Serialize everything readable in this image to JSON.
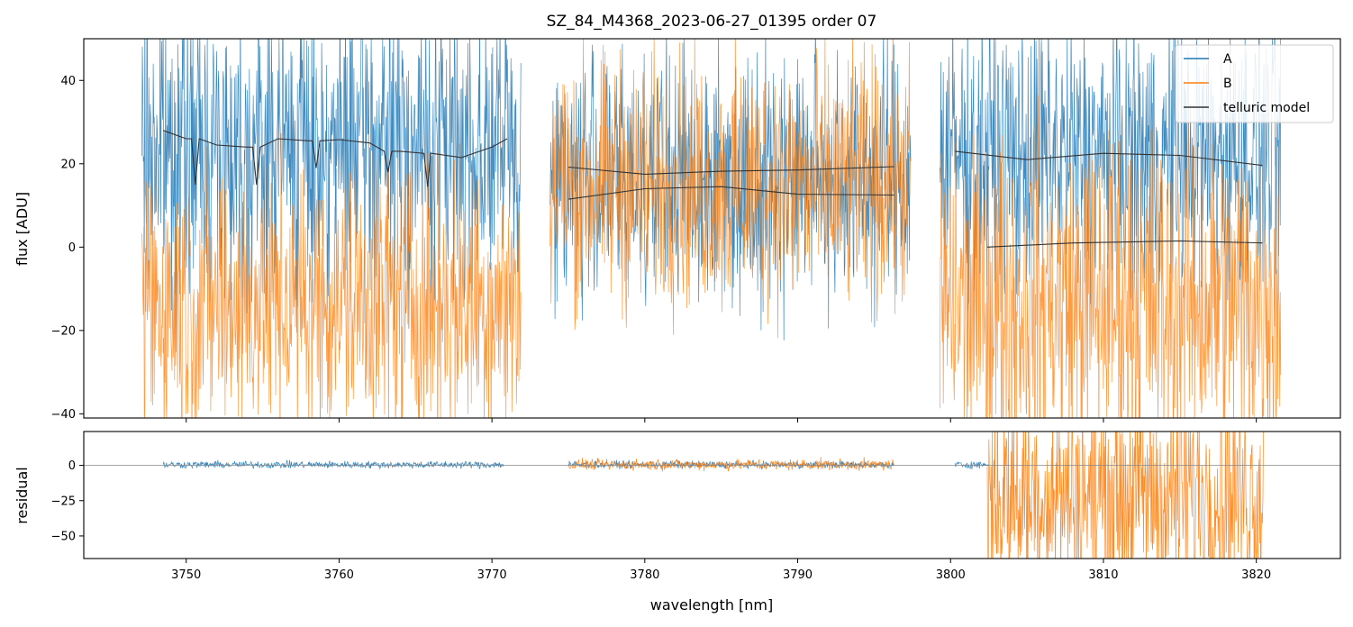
{
  "figure": {
    "title": "SZ_84_M4368_2023-06-27_01395  order 07"
  },
  "colors": {
    "A": "#1f77b4",
    "B": "#ff7f0e",
    "model": "#333333",
    "zero": "#888888"
  },
  "chart_data": [
    {
      "name": "flux-panel",
      "type": "line",
      "ylabel": "flux [ADU]",
      "xlim": [
        3743.3,
        3825.5
      ],
      "ylim": [
        -41,
        50
      ],
      "yticks": [
        -40,
        -20,
        0,
        20,
        40
      ],
      "ytick_labels": [
        "−40",
        "−20",
        "0",
        "20",
        "40"
      ],
      "xticks": [
        3750,
        3760,
        3770,
        3780,
        3790,
        3800,
        3810,
        3820
      ],
      "legend": {
        "position": "top-right",
        "entries": [
          "A",
          "B",
          "telluric model"
        ]
      },
      "segments": [
        {
          "x_range": [
            3747.1,
            3771.9
          ],
          "A": {
            "mean": 24,
            "noise": 14
          },
          "B": {
            "mean": -13,
            "noise": 13
          }
        },
        {
          "x_range": [
            3773.8,
            3797.4
          ],
          "A": {
            "mean": 17,
            "noise": 12
          },
          "B": {
            "mean": 15,
            "noise": 12
          }
        },
        {
          "x_range": [
            3799.3,
            3821.6
          ],
          "A": {
            "mean": 22,
            "noise": 13
          },
          "B": {
            "mean": -13,
            "noise": 16
          }
        }
      ],
      "telluric_model": [
        {
          "trace": "A",
          "x": [
            3748.5,
            3750,
            3752,
            3754,
            3756,
            3758,
            3760,
            3762,
            3764,
            3766,
            3768,
            3770,
            3771
          ],
          "y": [
            28,
            26,
            24.5,
            24,
            26,
            25.5,
            25.8,
            25,
            23,
            22.5,
            21.5,
            24,
            26
          ],
          "absorption_lines": [
            [
              3750.6,
              15
            ],
            [
              3754.6,
              15
            ],
            [
              3758.5,
              19
            ],
            [
              3763.2,
              18
            ],
            [
              3765.8,
              14.5
            ]
          ]
        },
        {
          "trace": "A",
          "x": [
            3775,
            3780,
            3785,
            3790,
            3796.3
          ],
          "y": [
            19.2,
            17.5,
            18.2,
            18.5,
            19.3
          ]
        },
        {
          "trace": "B",
          "x": [
            3775,
            3780,
            3785,
            3790,
            3796.3
          ],
          "y": [
            11.5,
            14,
            14.5,
            12.7,
            12.5
          ]
        },
        {
          "trace": "A",
          "x": [
            3800.3,
            3805,
            3810,
            3815,
            3820.4
          ],
          "y": [
            23,
            21,
            22.5,
            22,
            19.6
          ]
        },
        {
          "trace": "B",
          "x": [
            3802.4,
            3808,
            3815,
            3820.4
          ],
          "y": [
            0,
            1,
            1.5,
            1
          ]
        }
      ]
    },
    {
      "name": "residual-panel",
      "type": "line",
      "ylabel": "residual",
      "xlabel": "wavelength [nm]",
      "xlim": [
        3743.3,
        3825.5
      ],
      "ylim": [
        -66,
        24
      ],
      "yticks": [
        -50,
        -25,
        0
      ],
      "ytick_labels": [
        "−50",
        "−25",
        "0"
      ],
      "xticks": [
        3750,
        3760,
        3770,
        3780,
        3790,
        3800,
        3810,
        3820
      ],
      "xtick_labels": [
        "3750",
        "3760",
        "3770",
        "3780",
        "3790",
        "3800",
        "3810",
        "3820"
      ],
      "zero_line": 0,
      "segments": [
        {
          "trace": "A",
          "x_range": [
            3748.5,
            3770.8
          ],
          "mean": 0.5,
          "noise": 1
        },
        {
          "trace": "A",
          "x_range": [
            3775,
            3796.3
          ],
          "mean": 0.5,
          "noise": 1
        },
        {
          "trace": "B",
          "x_range": [
            3775,
            3796.3
          ],
          "mean": 0.5,
          "noise": 1.5
        },
        {
          "trace": "A",
          "x_range": [
            3800.3,
            3802.5
          ],
          "mean": 0.5,
          "noise": 1
        },
        {
          "trace": "B",
          "x_range": [
            3802.4,
            3820.5
          ],
          "mean": -20,
          "noise": 30
        }
      ]
    }
  ]
}
